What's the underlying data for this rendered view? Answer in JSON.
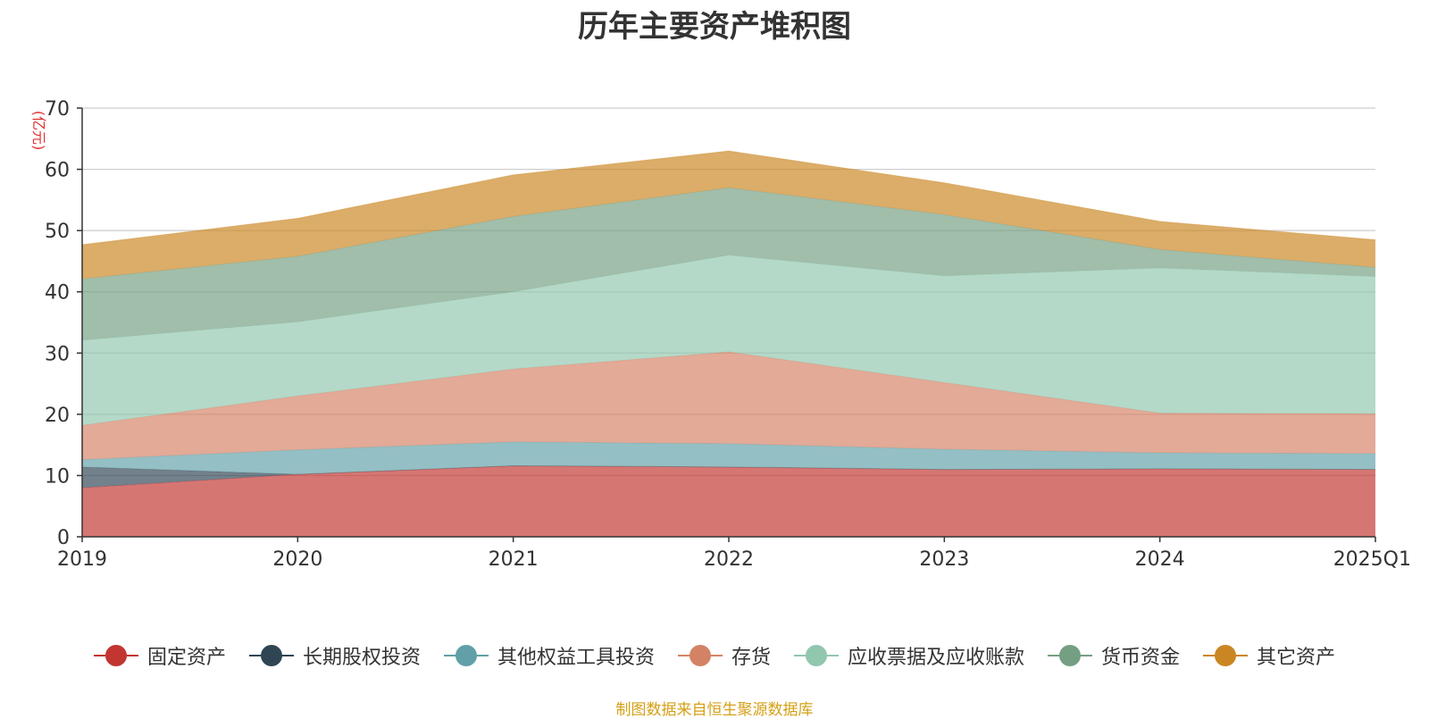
{
  "chart_data": {
    "type": "area",
    "stacked": true,
    "title": "历年主要资产堆积图",
    "ylabel": "(亿元)",
    "xlabel": "",
    "categories": [
      "2019",
      "2020",
      "2021",
      "2022",
      "2023",
      "2024",
      "2025Q1"
    ],
    "ylim": [
      0,
      70
    ],
    "yticks": [
      0,
      10,
      20,
      30,
      40,
      50,
      60,
      70
    ],
    "grid": true,
    "legend_position": "bottom",
    "series": [
      {
        "name": "固定资产",
        "color": "#c23531",
        "values": [
          8.0,
          10.2,
          11.6,
          11.4,
          11.0,
          11.1,
          11.0
        ]
      },
      {
        "name": "长期股权投资",
        "color": "#2f4554",
        "values": [
          3.4,
          0.0,
          0.0,
          0.0,
          0.0,
          0.0,
          0.0
        ]
      },
      {
        "name": "其他权益工具投资",
        "color": "#61a0a8",
        "values": [
          1.2,
          4.0,
          3.9,
          3.8,
          3.3,
          2.6,
          2.6
        ]
      },
      {
        "name": "存货",
        "color": "#d48265",
        "values": [
          5.6,
          8.8,
          11.9,
          15.0,
          10.9,
          6.5,
          6.5
        ]
      },
      {
        "name": "应收票据及应收账款",
        "color": "#91c7ae",
        "values": [
          13.9,
          12.1,
          12.6,
          15.8,
          17.4,
          23.7,
          22.4
        ]
      },
      {
        "name": "货币资金",
        "color": "#749f83",
        "values": [
          10.0,
          10.7,
          12.3,
          11.0,
          10.0,
          3.0,
          1.5
        ]
      },
      {
        "name": "其它资产",
        "color": "#ca8622",
        "values": [
          5.6,
          6.2,
          6.8,
          6.0,
          5.2,
          4.6,
          4.5
        ]
      }
    ]
  },
  "source_text": "制图数据来自恒生聚源数据库"
}
